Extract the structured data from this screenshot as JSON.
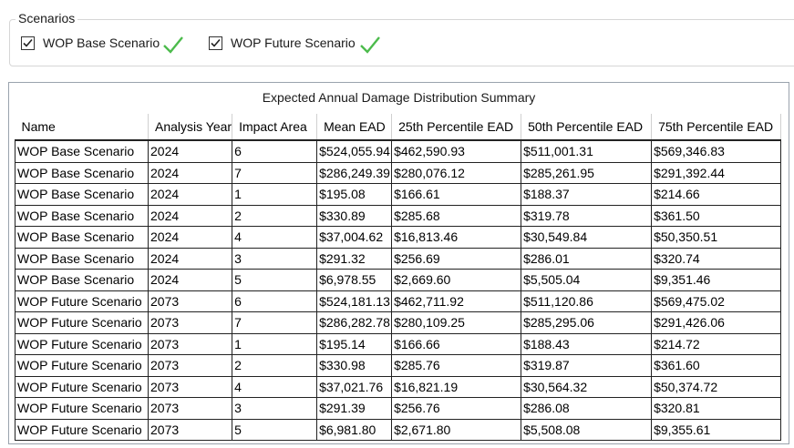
{
  "scenarios": {
    "title": "Scenarios",
    "items": [
      {
        "label": "WOP Base Scenario",
        "checked": true
      },
      {
        "label": "WOP Future Scenario",
        "checked": true
      }
    ]
  },
  "summary": {
    "title": "Expected Annual Damage Distribution Summary",
    "columns": [
      "Name",
      "Analysis Year",
      "Impact Area",
      "Mean EAD",
      "25th Percentile EAD",
      "50th Percentile EAD",
      "75th Percentile EAD"
    ],
    "rows": [
      [
        "WOP Base Scenario",
        "2024",
        "6",
        "$524,055.94",
        "$462,590.93",
        "$511,001.31",
        "$569,346.83"
      ],
      [
        "WOP Base Scenario",
        "2024",
        "7",
        "$286,249.39",
        "$280,076.12",
        "$285,261.95",
        "$291,392.44"
      ],
      [
        "WOP Base Scenario",
        "2024",
        "1",
        "$195.08",
        "$166.61",
        "$188.37",
        "$214.66"
      ],
      [
        "WOP Base Scenario",
        "2024",
        "2",
        "$330.89",
        "$285.68",
        "$319.78",
        "$361.50"
      ],
      [
        "WOP Base Scenario",
        "2024",
        "4",
        "$37,004.62",
        "$16,813.46",
        "$30,549.84",
        "$50,350.51"
      ],
      [
        "WOP Base Scenario",
        "2024",
        "3",
        "$291.32",
        "$256.69",
        "$286.01",
        "$320.74"
      ],
      [
        "WOP Base Scenario",
        "2024",
        "5",
        "$6,978.55",
        "$2,669.60",
        "$5,505.04",
        "$9,351.46"
      ],
      [
        "WOP Future Scenario",
        "2073",
        "6",
        "$524,181.13",
        "$462,711.92",
        "$511,120.86",
        "$569,475.02"
      ],
      [
        "WOP Future Scenario",
        "2073",
        "7",
        "$286,282.78",
        "$280,109.25",
        "$285,295.06",
        "$291,426.06"
      ],
      [
        "WOP Future Scenario",
        "2073",
        "1",
        "$195.14",
        "$166.66",
        "$188.43",
        "$214.72"
      ],
      [
        "WOP Future Scenario",
        "2073",
        "2",
        "$330.98",
        "$285.76",
        "$319.87",
        "$361.60"
      ],
      [
        "WOP Future Scenario",
        "2073",
        "4",
        "$37,021.76",
        "$16,821.19",
        "$30,564.32",
        "$50,374.72"
      ],
      [
        "WOP Future Scenario",
        "2073",
        "3",
        "$291.39",
        "$256.76",
        "$286.08",
        "$320.81"
      ],
      [
        "WOP Future Scenario",
        "2073",
        "5",
        "$6,981.80",
        "$2,671.80",
        "$5,508.08",
        "$9,355.61"
      ]
    ]
  },
  "colors": {
    "check_mark": "#4cbb4c",
    "border": "#9aa3ad"
  }
}
